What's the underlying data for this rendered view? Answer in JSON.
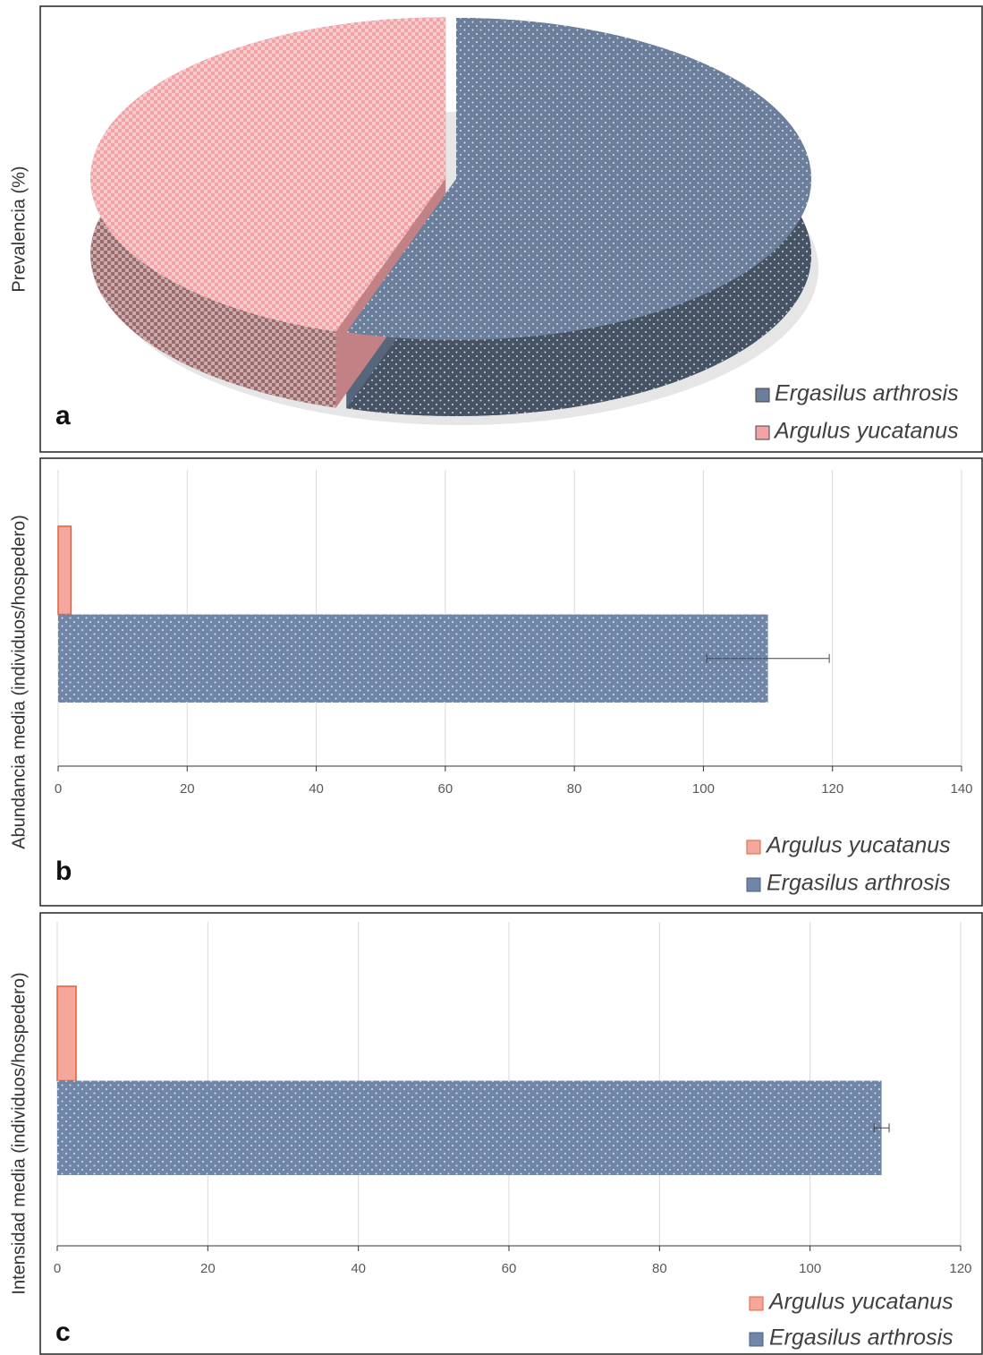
{
  "chart_data": [
    {
      "type": "pie",
      "ylabel": "Prevalencia (%)",
      "panel_label": "a",
      "categories": [
        "Ergasilus arthrosis",
        "Argulus yucatanus"
      ],
      "values": [
        55,
        45
      ],
      "colors": [
        "#6b7f9c",
        "#f2a3a6"
      ]
    },
    {
      "type": "barh",
      "ylabel": "Abundancia media (individuos/hospedero)",
      "panel_label": "b",
      "series": [
        {
          "name": "Argulus yucatanus",
          "color": "#f5a79c",
          "edgecolor": "#e0603a",
          "values": [
            2
          ],
          "errors": [
            null
          ]
        },
        {
          "name": "Ergasilus arthrosis",
          "color": "#7086a8",
          "values": [
            110
          ],
          "errors": [
            9.5
          ]
        }
      ],
      "xlim": [
        0,
        140
      ],
      "xticks": [
        0,
        20,
        40,
        60,
        80,
        100,
        120,
        140
      ],
      "grid": true
    },
    {
      "type": "barh",
      "ylabel": "Intensidad media (individuos/hospedero)",
      "panel_label": "c",
      "series": [
        {
          "name": "Argulus yucatanus",
          "color": "#f5a79c",
          "edgecolor": "#e0603a",
          "values": [
            2.5
          ],
          "errors": [
            null
          ]
        },
        {
          "name": "Ergasilus arthrosis",
          "color": "#7086a8",
          "values": [
            109.5
          ],
          "errors": [
            1
          ]
        }
      ],
      "xlim": [
        0,
        120
      ],
      "xticks": [
        0,
        20,
        40,
        60,
        80,
        100,
        120
      ],
      "grid": true
    }
  ]
}
